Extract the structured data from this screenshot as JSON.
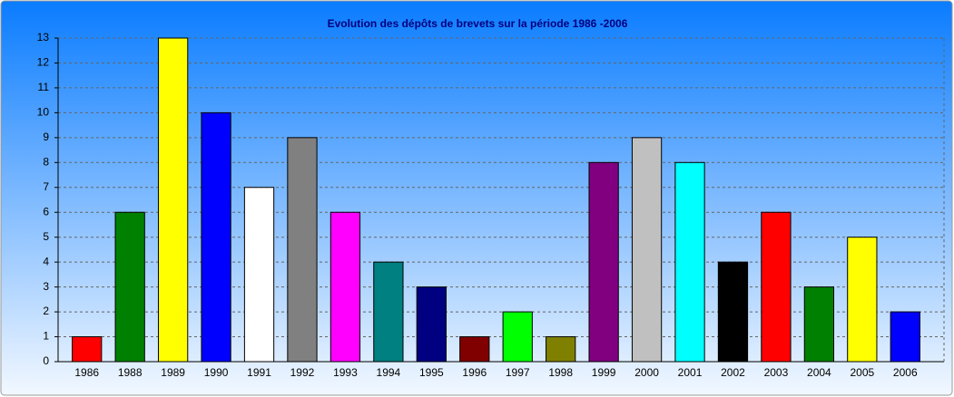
{
  "chart_data": {
    "type": "bar",
    "title": "Evolution des dépôts de brevets sur la période 1986 -2006",
    "categories": [
      "1986",
      "1988",
      "1989",
      "1990",
      "1991",
      "1992",
      "1993",
      "1994",
      "1995",
      "1996",
      "1997",
      "1998",
      "1999",
      "2000",
      "2001",
      "2002",
      "2003",
      "2004",
      "2005",
      "2006"
    ],
    "values": [
      1,
      6,
      13,
      10,
      7,
      9,
      6,
      4,
      3,
      1,
      2,
      1,
      8,
      9,
      8,
      4,
      6,
      3,
      5,
      2
    ],
    "colors": [
      "#ff0000",
      "#008000",
      "#ffff00",
      "#0000ff",
      "#ffffff",
      "#808080",
      "#ff00ff",
      "#008080",
      "#000080",
      "#800000",
      "#00ff00",
      "#808000",
      "#800080",
      "#c0c0c0",
      "#00ffff",
      "#000000",
      "#ff0000",
      "#008000",
      "#ffff00",
      "#0000ff"
    ],
    "ylim": [
      0,
      13
    ],
    "yticks": [
      0,
      1,
      2,
      3,
      4,
      5,
      6,
      7,
      8,
      9,
      10,
      11,
      12,
      13
    ],
    "grid": true
  }
}
